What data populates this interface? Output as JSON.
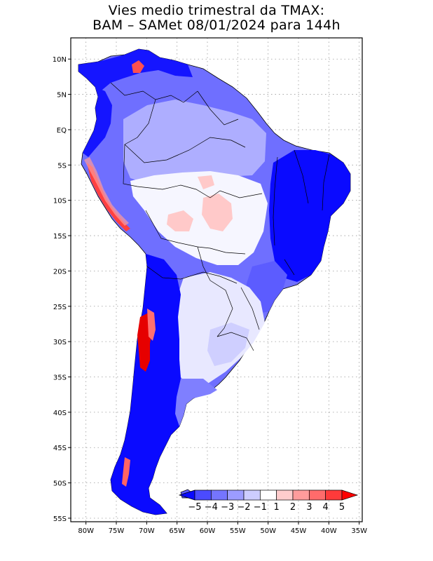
{
  "title": {
    "line1": "Vies medio trimestral da TMAX:",
    "line2": "BAM – SAMet 08/01/2024  para 144h"
  },
  "map": {
    "lat_labels": [
      "10N",
      "5N",
      "EQ",
      "5S",
      "10S",
      "15S",
      "20S",
      "25S",
      "30S",
      "35S",
      "40S",
      "45S",
      "50S",
      "55S"
    ],
    "lat_values": [
      10,
      5,
      0,
      -5,
      -10,
      -15,
      -20,
      -25,
      -30,
      -35,
      -40,
      -45,
      -50,
      -55
    ],
    "lon_labels": [
      "80W",
      "75W",
      "70W",
      "65W",
      "60W",
      "55W",
      "50W",
      "45W",
      "40W",
      "35W"
    ],
    "lon_values": [
      -80,
      -75,
      -70,
      -65,
      -60,
      -55,
      -50,
      -45,
      -40,
      -35
    ],
    "extent": {
      "lon_min": -82.5,
      "lon_max": -34.5,
      "lat_min": -55.5,
      "lat_max": 13
    }
  },
  "colorbar": {
    "labels": [
      "−5",
      "−4",
      "−3",
      "−2",
      "−1",
      "1",
      "2",
      "3",
      "4",
      "5"
    ],
    "colors": [
      "#0a0aff",
      "#4b4bff",
      "#7575ff",
      "#9c9cff",
      "#ccccff",
      "#ffffff",
      "#ffcccc",
      "#ff9c9c",
      "#ff6b6b",
      "#ff3a3a",
      "#ff0000"
    ]
  }
}
